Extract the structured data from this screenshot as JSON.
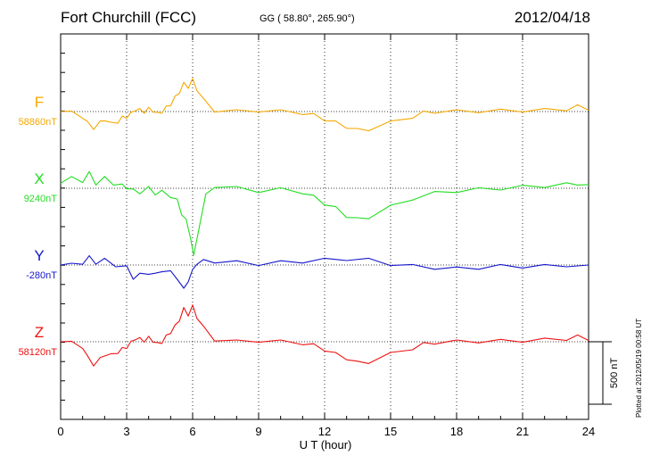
{
  "header": {
    "station": "Fort Churchill (FCC)",
    "coords": "GG ( 58.80°, 265.90°)",
    "date": "2012/04/18"
  },
  "plotted_note": "Plotted at 2012/05/19 00:58 UT",
  "chart_data": {
    "type": "line",
    "xlabel": "U T (hour)",
    "xlim": [
      0,
      24
    ],
    "xticks": [
      0,
      3,
      6,
      9,
      12,
      15,
      18,
      21,
      24
    ],
    "grid": true,
    "scale_bar": {
      "label": "500 nT",
      "value_nT": 500
    },
    "series": [
      {
        "name": "F",
        "baseline": "58860nT",
        "color": "#F5A800",
        "x": [
          0,
          0.5,
          1,
          1.2,
          1.5,
          1.8,
          2,
          2.3,
          2.6,
          2.8,
          3,
          3.2,
          3.4,
          3.6,
          3.8,
          4,
          4.2,
          4.4,
          4.6,
          4.8,
          5,
          5.2,
          5.4,
          5.6,
          5.8,
          6,
          6.2,
          6.5,
          7,
          8,
          9,
          10,
          11,
          11.5,
          12,
          12.5,
          13,
          13.5,
          14,
          15,
          16,
          16.5,
          17,
          18,
          19,
          20,
          21,
          22,
          23,
          23.5,
          24
        ],
        "y": [
          0,
          -10,
          -40,
          -90,
          -130,
          -90,
          -60,
          -100,
          -80,
          -50,
          -40,
          -20,
          20,
          10,
          0,
          20,
          10,
          -20,
          0,
          30,
          60,
          110,
          160,
          220,
          200,
          250,
          180,
          90,
          10,
          0,
          10,
          0,
          -10,
          -30,
          -60,
          -90,
          -120,
          -150,
          -140,
          -90,
          -40,
          -10,
          0,
          0,
          5,
          5,
          10,
          10,
          20,
          40,
          10
        ]
      },
      {
        "name": "X",
        "baseline": "9240nT",
        "color": "#22DD22",
        "x": [
          0,
          0.5,
          1,
          1.3,
          1.6,
          2,
          2.4,
          2.8,
          3,
          3.3,
          3.6,
          4,
          4.3,
          4.6,
          5,
          5.3,
          5.5,
          5.7,
          5.9,
          6.05,
          6.3,
          6.6,
          7,
          8,
          9,
          10,
          11,
          11.5,
          12,
          12.5,
          13,
          13.5,
          14,
          15,
          16,
          17,
          18,
          19,
          20,
          21,
          22,
          23,
          23.5,
          24
        ],
        "y": [
          40,
          80,
          60,
          120,
          40,
          80,
          40,
          20,
          10,
          -20,
          -30,
          0,
          -40,
          -30,
          -60,
          -100,
          -200,
          -260,
          -380,
          -550,
          -300,
          -60,
          20,
          0,
          -20,
          -10,
          -30,
          -70,
          -120,
          -160,
          -220,
          -250,
          -230,
          -150,
          -80,
          -40,
          -20,
          -10,
          0,
          10,
          20,
          30,
          40,
          30
        ]
      },
      {
        "name": "Y",
        "baseline": "-280nT",
        "color": "#1515CC",
        "x": [
          0,
          0.5,
          1,
          1.3,
          1.6,
          2,
          2.5,
          3,
          3.3,
          3.6,
          4,
          4.3,
          4.6,
          5,
          5.3,
          5.6,
          5.8,
          6,
          6.2,
          6.5,
          7,
          8,
          9,
          10,
          11,
          12,
          13,
          14,
          15,
          16,
          17,
          18,
          19,
          20,
          21,
          22,
          23,
          24
        ],
        "y": [
          0,
          0,
          20,
          60,
          20,
          40,
          0,
          -20,
          -100,
          -80,
          -60,
          -80,
          -40,
          -60,
          -100,
          -200,
          -120,
          -50,
          20,
          30,
          30,
          20,
          10,
          20,
          30,
          40,
          50,
          40,
          10,
          -10,
          -20,
          -30,
          -20,
          -10,
          -10,
          -10,
          0,
          0
        ]
      },
      {
        "name": "Z",
        "baseline": "58120nT",
        "color": "#EE1111",
        "x": [
          0,
          0.5,
          1,
          1.2,
          1.5,
          1.8,
          2,
          2.3,
          2.6,
          2.8,
          3,
          3.2,
          3.4,
          3.6,
          3.8,
          4,
          4.2,
          4.4,
          4.6,
          4.8,
          5,
          5.2,
          5.4,
          5.6,
          5.8,
          6,
          6.2,
          6.5,
          7,
          8,
          9,
          10,
          11,
          11.5,
          12,
          12.5,
          13,
          13.5,
          14,
          15,
          16,
          16.5,
          17,
          18,
          19,
          20,
          21,
          22,
          23,
          23.5,
          24
        ],
        "y": [
          0,
          -10,
          -40,
          -120,
          -180,
          -140,
          -100,
          -110,
          -80,
          -60,
          -40,
          -10,
          30,
          20,
          10,
          30,
          10,
          -20,
          0,
          40,
          80,
          120,
          180,
          260,
          220,
          280,
          200,
          110,
          20,
          0,
          10,
          0,
          -10,
          -30,
          -60,
          -100,
          -130,
          -170,
          -160,
          -100,
          -50,
          -20,
          -5,
          0,
          5,
          5,
          10,
          15,
          25,
          40,
          10
        ]
      }
    ]
  }
}
